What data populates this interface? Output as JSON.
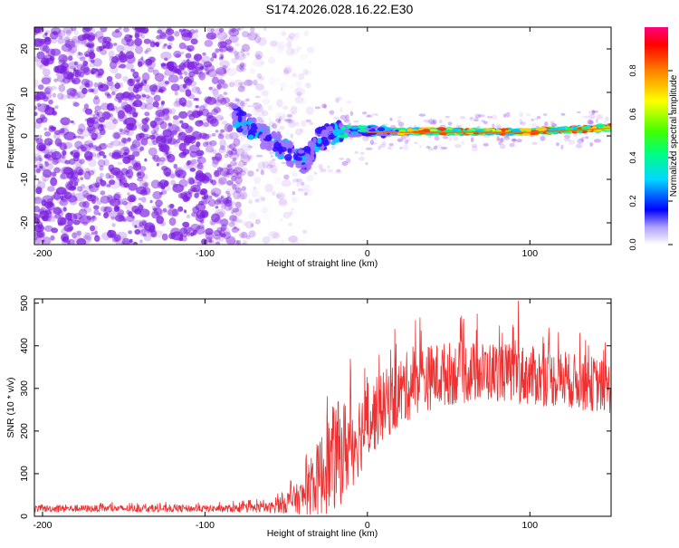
{
  "title": "S174.2026.028.16.22.E30",
  "colors": {
    "background": "#ffffff",
    "noise": "#7b1fe0",
    "snr_line": "#f03030",
    "axis": "#000000"
  },
  "chart_data": [
    {
      "type": "heatmap",
      "title": "S174.2026.028.16.22.E30",
      "xlabel": "Height of straight line (km)",
      "ylabel": "Frequency (Hz)",
      "xlim": [
        -205,
        150
      ],
      "ylim": [
        -25,
        25
      ],
      "xticks": [
        -200,
        -100,
        0,
        100
      ],
      "yticks": [
        -20,
        -10,
        0,
        10,
        20
      ],
      "xtick_labels": [
        "-200",
        "-100",
        "0",
        "100"
      ],
      "ytick_labels": [
        "-20",
        "-10",
        "0",
        "10",
        "20"
      ],
      "noise_region_x": [
        -205,
        -75
      ],
      "trace": {
        "x": [
          -85,
          -75,
          -65,
          -55,
          -48,
          -42,
          -36,
          -30,
          -25,
          -20,
          -15,
          -10,
          -5,
          0,
          20,
          50,
          80,
          100,
          130,
          150
        ],
        "frequency": [
          5,
          3,
          0,
          -2,
          -4,
          -6,
          -5,
          -1,
          0,
          0,
          1,
          1,
          1,
          1,
          1,
          1,
          1,
          1,
          1.5,
          2
        ]
      },
      "colorbar": {
        "label": "Normalized spectral amplitude",
        "range": [
          0,
          1
        ],
        "ticks": [
          0.0,
          0.2,
          0.4,
          0.6,
          0.8
        ],
        "tick_labels": [
          "0.0",
          "0.2",
          "0.4",
          "0.6",
          "0.8"
        ]
      }
    },
    {
      "type": "line",
      "xlabel": "Height of straight line (km)",
      "ylabel": "SNR (10 * v/v)",
      "xlim": [
        -205,
        150
      ],
      "ylim": [
        0,
        510
      ],
      "xticks": [
        -200,
        -100,
        0,
        100
      ],
      "yticks": [
        0,
        100,
        200,
        300,
        400,
        500
      ],
      "xtick_labels": [
        "-200",
        "-100",
        "0",
        "100"
      ],
      "ytick_labels": [
        "0",
        "100",
        "200",
        "300",
        "400",
        "500"
      ],
      "envelope": {
        "x": [
          -205,
          -90,
          -60,
          -40,
          -30,
          -20,
          -10,
          0,
          10,
          20,
          30,
          50,
          80,
          100,
          120,
          140,
          150
        ],
        "mean": [
          18,
          18,
          20,
          45,
          90,
          140,
          170,
          220,
          260,
          290,
          320,
          335,
          340,
          330,
          320,
          310,
          300
        ],
        "spread": [
          8,
          8,
          12,
          40,
          90,
          130,
          110,
          90,
          80,
          85,
          80,
          75,
          70,
          70,
          65,
          65,
          60
        ]
      },
      "peak": {
        "x": 93,
        "y": 505
      }
    }
  ]
}
